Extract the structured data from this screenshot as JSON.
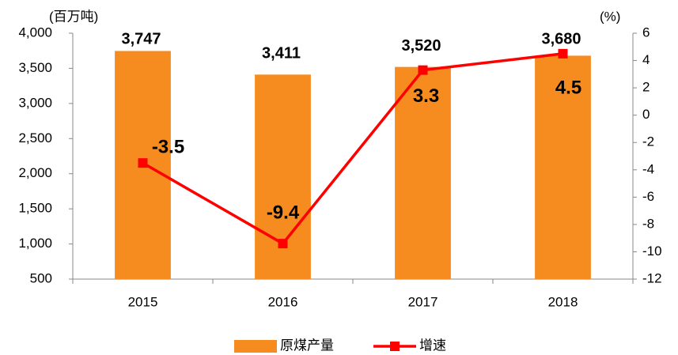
{
  "chart_data": {
    "type": "bar",
    "categories": [
      "2015",
      "2016",
      "2017",
      "2018"
    ],
    "ylabel": "(百万吨)",
    "y2label": "(%)",
    "ylim": [
      500,
      4000
    ],
    "yticks": [
      500,
      {
        "value": 1000,
        "label": "1,000"
      },
      {
        "value": 1500,
        "label": "1,500"
      },
      {
        "value": 2000,
        "label": "2,000"
      },
      {
        "value": 2500,
        "label": "2,500"
      },
      {
        "value": 3000,
        "label": "3,000"
      },
      {
        "value": 3500,
        "label": "3,500"
      },
      {
        "value": 4000,
        "label": "4,000"
      }
    ],
    "y2lim": [
      -12,
      6
    ],
    "y2ticks": [
      -12,
      -10,
      -8,
      -6,
      -4,
      -2,
      0,
      2,
      4,
      6
    ],
    "series": [
      {
        "name": "原煤产量",
        "type": "bar",
        "color": "#f68b1f",
        "values": [
          3747,
          3411,
          3520,
          3680
        ],
        "value_labels": [
          "3,747",
          "3,411",
          "3,520",
          "3,680"
        ]
      },
      {
        "name": "增速",
        "type": "line",
        "axis": "y2",
        "color": "#ff0000",
        "values": [
          -3.5,
          -9.4,
          3.3,
          4.5
        ]
      }
    ]
  }
}
